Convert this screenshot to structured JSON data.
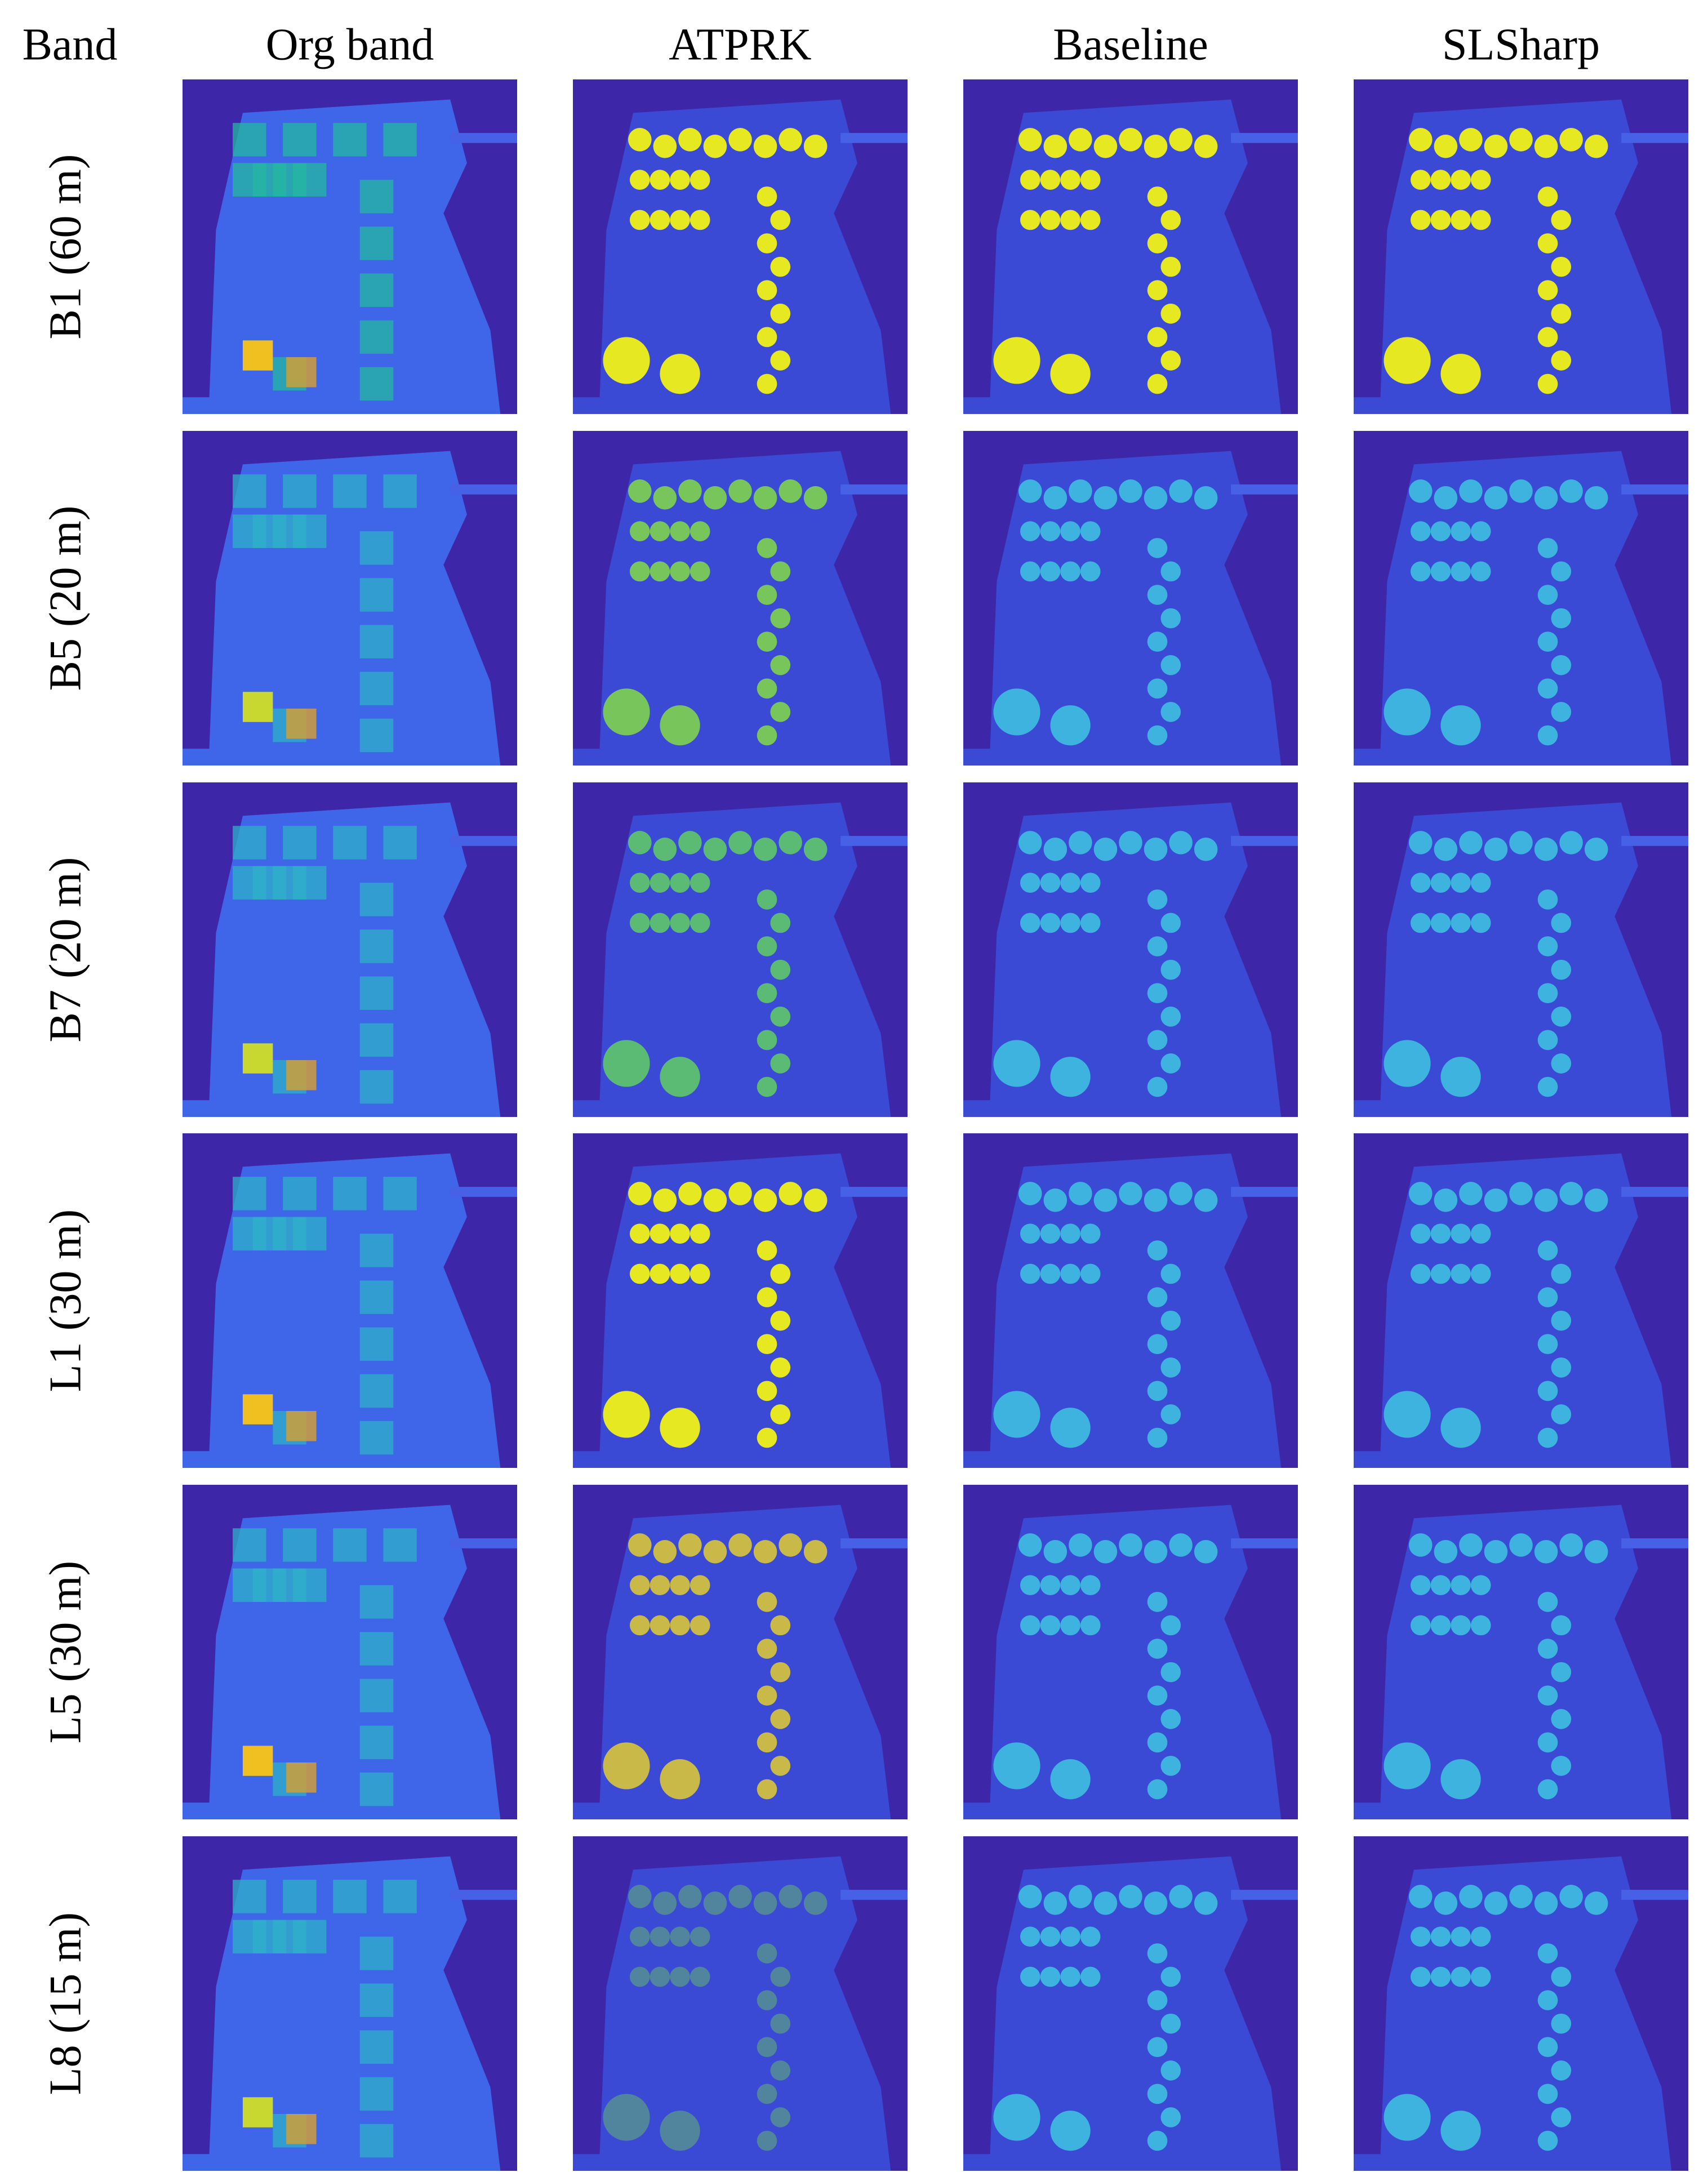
{
  "header": {
    "corner": "Band",
    "columns": [
      "Org band",
      "ATPRK",
      "Baseline",
      "SLSharp"
    ]
  },
  "rows": [
    "B1 (60 m)",
    "B5 (20 m)",
    "B7 (20 m)",
    "L1 (30 m)",
    "L5 (30 m)",
    "L8 (15 m)"
  ]
}
